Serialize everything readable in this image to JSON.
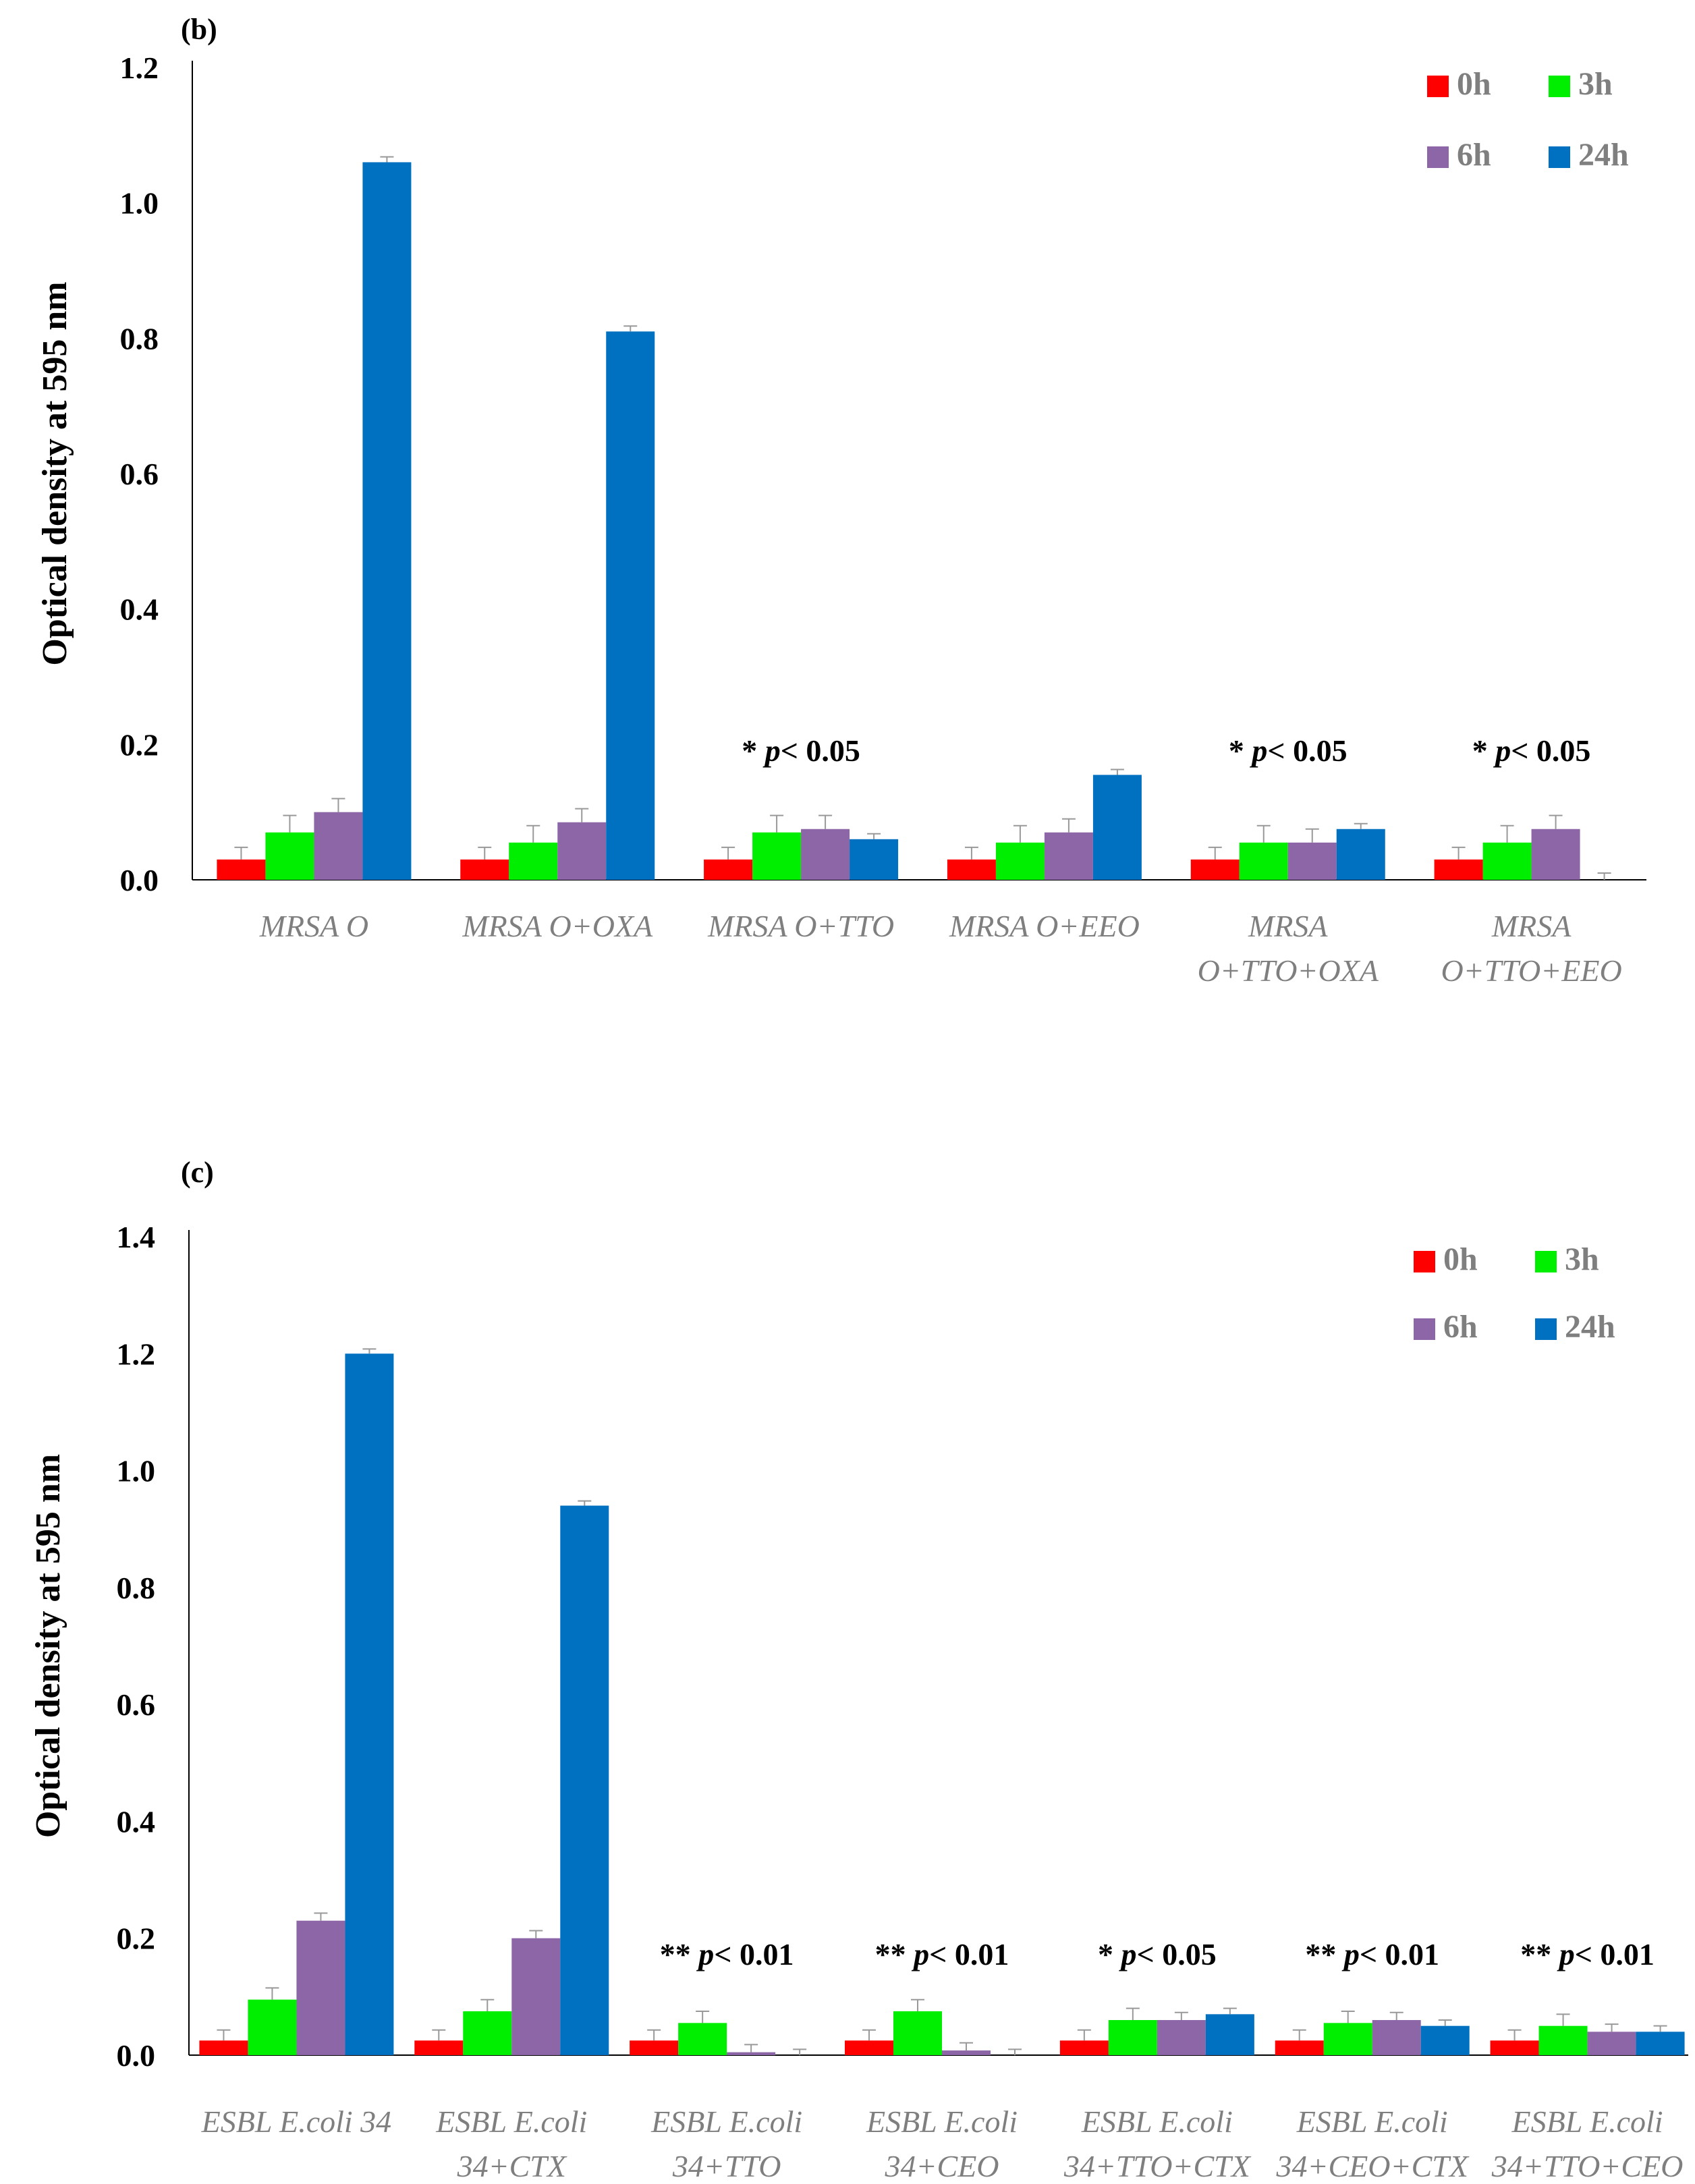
{
  "colors": {
    "0h": "#ff0000",
    "3h": "#00ee00",
    "6h": "#8c66a6",
    "24h": "#0070c0",
    "axis": "#000000",
    "category_text": "#7f7f7f",
    "legend_text": "#7f7f7f"
  },
  "chart_data": [
    {
      "panel": "(b)",
      "type": "bar",
      "ylabel": "Optical density at 595 nm",
      "xlabel": "",
      "ylim": [
        0,
        1.2
      ],
      "yticks": [
        "0.0",
        "0.2",
        "0.4",
        "0.6",
        "0.8",
        "1.0",
        "1.2"
      ],
      "legend_position": "top-right",
      "categories": [
        [
          "MRSA O"
        ],
        [
          "MRSA O+OXA"
        ],
        [
          "MRSA O+TTO"
        ],
        [
          "MRSA O+EEO"
        ],
        [
          "MRSA",
          "O+TTO+OXA"
        ],
        [
          "MRSA",
          "O+TTO+EEO"
        ]
      ],
      "series": [
        {
          "name": "0h",
          "values": [
            0.03,
            0.03,
            0.03,
            0.03,
            0.03,
            0.03
          ],
          "errors": [
            0.018,
            0.018,
            0.018,
            0.018,
            0.018,
            0.018
          ]
        },
        {
          "name": "3h",
          "values": [
            0.07,
            0.055,
            0.07,
            0.055,
            0.055,
            0.055
          ],
          "errors": [
            0.025,
            0.025,
            0.025,
            0.025,
            0.025,
            0.025
          ]
        },
        {
          "name": "6h",
          "values": [
            0.1,
            0.085,
            0.075,
            0.07,
            0.055,
            0.075
          ],
          "errors": [
            0.02,
            0.02,
            0.02,
            0.02,
            0.02,
            0.02
          ]
        },
        {
          "name": "24h",
          "values": [
            1.06,
            0.81,
            0.06,
            0.155,
            0.075,
            0.0
          ],
          "errors": [
            0.008,
            0.008,
            0.008,
            0.008,
            0.008,
            0.01
          ]
        }
      ],
      "annotations": [
        {
          "category_index": 2,
          "prefix": "*",
          "p": "p",
          "rest": "< 0.05"
        },
        {
          "category_index": 4,
          "prefix": "*",
          "p": "p",
          "rest": "< 0.05"
        },
        {
          "category_index": 5,
          "prefix": "*",
          "p": "p",
          "rest": "< 0.05"
        }
      ]
    },
    {
      "panel": "(c)",
      "type": "bar",
      "ylabel": "Optical density at 595 nm",
      "xlabel": "",
      "ylim": [
        0,
        1.4
      ],
      "yticks": [
        "0.0",
        "0.2",
        "0.4",
        "0.6",
        "0.8",
        "1.0",
        "1.2",
        "1.4"
      ],
      "legend_position": "top-right",
      "categories": [
        [
          "ESBL E.coli 34"
        ],
        [
          "ESBL E.coli",
          "34+CTX"
        ],
        [
          "ESBL E.coli",
          "34+TTO"
        ],
        [
          "ESBL E.coli",
          "34+CEO"
        ],
        [
          "ESBL E.coli",
          "34+TTO+CTX"
        ],
        [
          "ESBL E.coli",
          "34+CEO+CTX"
        ],
        [
          "ESBL E.coli",
          "34+TTO+CEO"
        ]
      ],
      "series": [
        {
          "name": "0h",
          "values": [
            0.025,
            0.025,
            0.025,
            0.025,
            0.025,
            0.025,
            0.025
          ],
          "errors": [
            0.018,
            0.018,
            0.018,
            0.018,
            0.018,
            0.018,
            0.018
          ]
        },
        {
          "name": "3h",
          "values": [
            0.095,
            0.075,
            0.055,
            0.075,
            0.06,
            0.055,
            0.05
          ],
          "errors": [
            0.02,
            0.02,
            0.02,
            0.02,
            0.02,
            0.02,
            0.02
          ]
        },
        {
          "name": "6h",
          "values": [
            0.23,
            0.2,
            0.005,
            0.008,
            0.06,
            0.06,
            0.04
          ],
          "errors": [
            0.013,
            0.013,
            0.013,
            0.013,
            0.013,
            0.013,
            0.013
          ]
        },
        {
          "name": "24h",
          "values": [
            1.2,
            0.94,
            0.0,
            0.0,
            0.07,
            0.05,
            0.04
          ],
          "errors": [
            0.008,
            0.008,
            0.01,
            0.01,
            0.01,
            0.01,
            0.01
          ]
        }
      ],
      "annotations": [
        {
          "category_index": 2,
          "prefix": "**",
          "p": "p",
          "rest": "< 0.01"
        },
        {
          "category_index": 3,
          "prefix": "**",
          "p": "p",
          "rest": "< 0.01"
        },
        {
          "category_index": 4,
          "prefix": "*",
          "p": "p",
          "rest": "< 0.05"
        },
        {
          "category_index": 5,
          "prefix": "**",
          "p": "p",
          "rest": "< 0.01"
        },
        {
          "category_index": 6,
          "prefix": "**",
          "p": "p",
          "rest": "< 0.01"
        }
      ]
    }
  ]
}
